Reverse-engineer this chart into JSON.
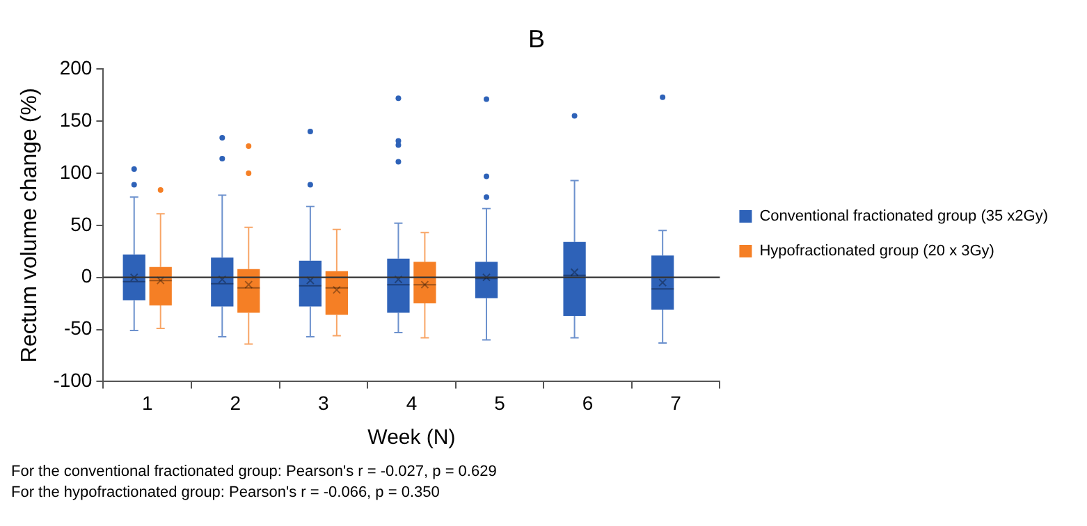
{
  "chart_data": {
    "type": "box",
    "title": "B",
    "xlabel": "Week (N)",
    "ylabel": "Rectum volume change (%)",
    "categories": [
      "1",
      "2",
      "3",
      "4",
      "5",
      "6",
      "7"
    ],
    "ylim": [
      -100,
      200
    ],
    "yticks": [
      -100,
      -50,
      0,
      50,
      100,
      150,
      200
    ],
    "grid": false,
    "legend": "right",
    "series": [
      {
        "name": "Conventional fractionated group (35 x2Gy)",
        "color": "#2e62b8",
        "boxes": [
          {
            "low": -51,
            "q1": -22,
            "median": -4,
            "q3": 22,
            "high": 77,
            "mean": 0,
            "outliers": [
              104,
              89
            ]
          },
          {
            "low": -57,
            "q1": -28,
            "median": -6,
            "q3": 19,
            "high": 79,
            "mean": -2,
            "outliers": [
              134,
              114
            ]
          },
          {
            "low": -57,
            "q1": -28,
            "median": -8,
            "q3": 16,
            "high": 68,
            "mean": -3,
            "outliers": [
              140,
              89
            ]
          },
          {
            "low": -53,
            "q1": -34,
            "median": -7,
            "q3": 18,
            "high": 52,
            "mean": -2,
            "outliers": [
              172,
              131,
              127,
              111
            ]
          },
          {
            "low": -60,
            "q1": -20,
            "median": -1,
            "q3": 15,
            "high": 66,
            "mean": 0,
            "outliers": [
              171,
              97,
              77
            ]
          },
          {
            "low": -58,
            "q1": -37,
            "median": 2,
            "q3": 34,
            "high": 93,
            "mean": 5,
            "outliers": [
              155
            ]
          },
          {
            "low": -63,
            "q1": -31,
            "median": -11,
            "q3": 21,
            "high": 45,
            "mean": -5,
            "outliers": [
              173
            ]
          }
        ]
      },
      {
        "name": "Hypofractionated group (20 x 3Gy)",
        "color": "#f57f25",
        "boxes": [
          {
            "low": -49,
            "q1": -27,
            "median": -3,
            "q3": 10,
            "high": 61,
            "mean": -3,
            "outliers": [
              84
            ]
          },
          {
            "low": -64,
            "q1": -34,
            "median": -10,
            "q3": 8,
            "high": 48,
            "mean": -7,
            "outliers": [
              126,
              100
            ]
          },
          {
            "low": -56,
            "q1": -36,
            "median": -10,
            "q3": 6,
            "high": 46,
            "mean": -12
          },
          {
            "low": -58,
            "q1": -25,
            "median": -7,
            "q3": 15,
            "high": 43,
            "mean": -7
          },
          null,
          null,
          null
        ]
      }
    ],
    "ref_lines": [
      {
        "axis": "y",
        "value": 0,
        "color": "#333333"
      }
    ],
    "annotations": [
      "For the conventional fractionated group: Pearson's r = -0.027, p = 0.629",
      "For the hypofractionated group: Pearson's r = -0.066, p = 0.350"
    ]
  }
}
